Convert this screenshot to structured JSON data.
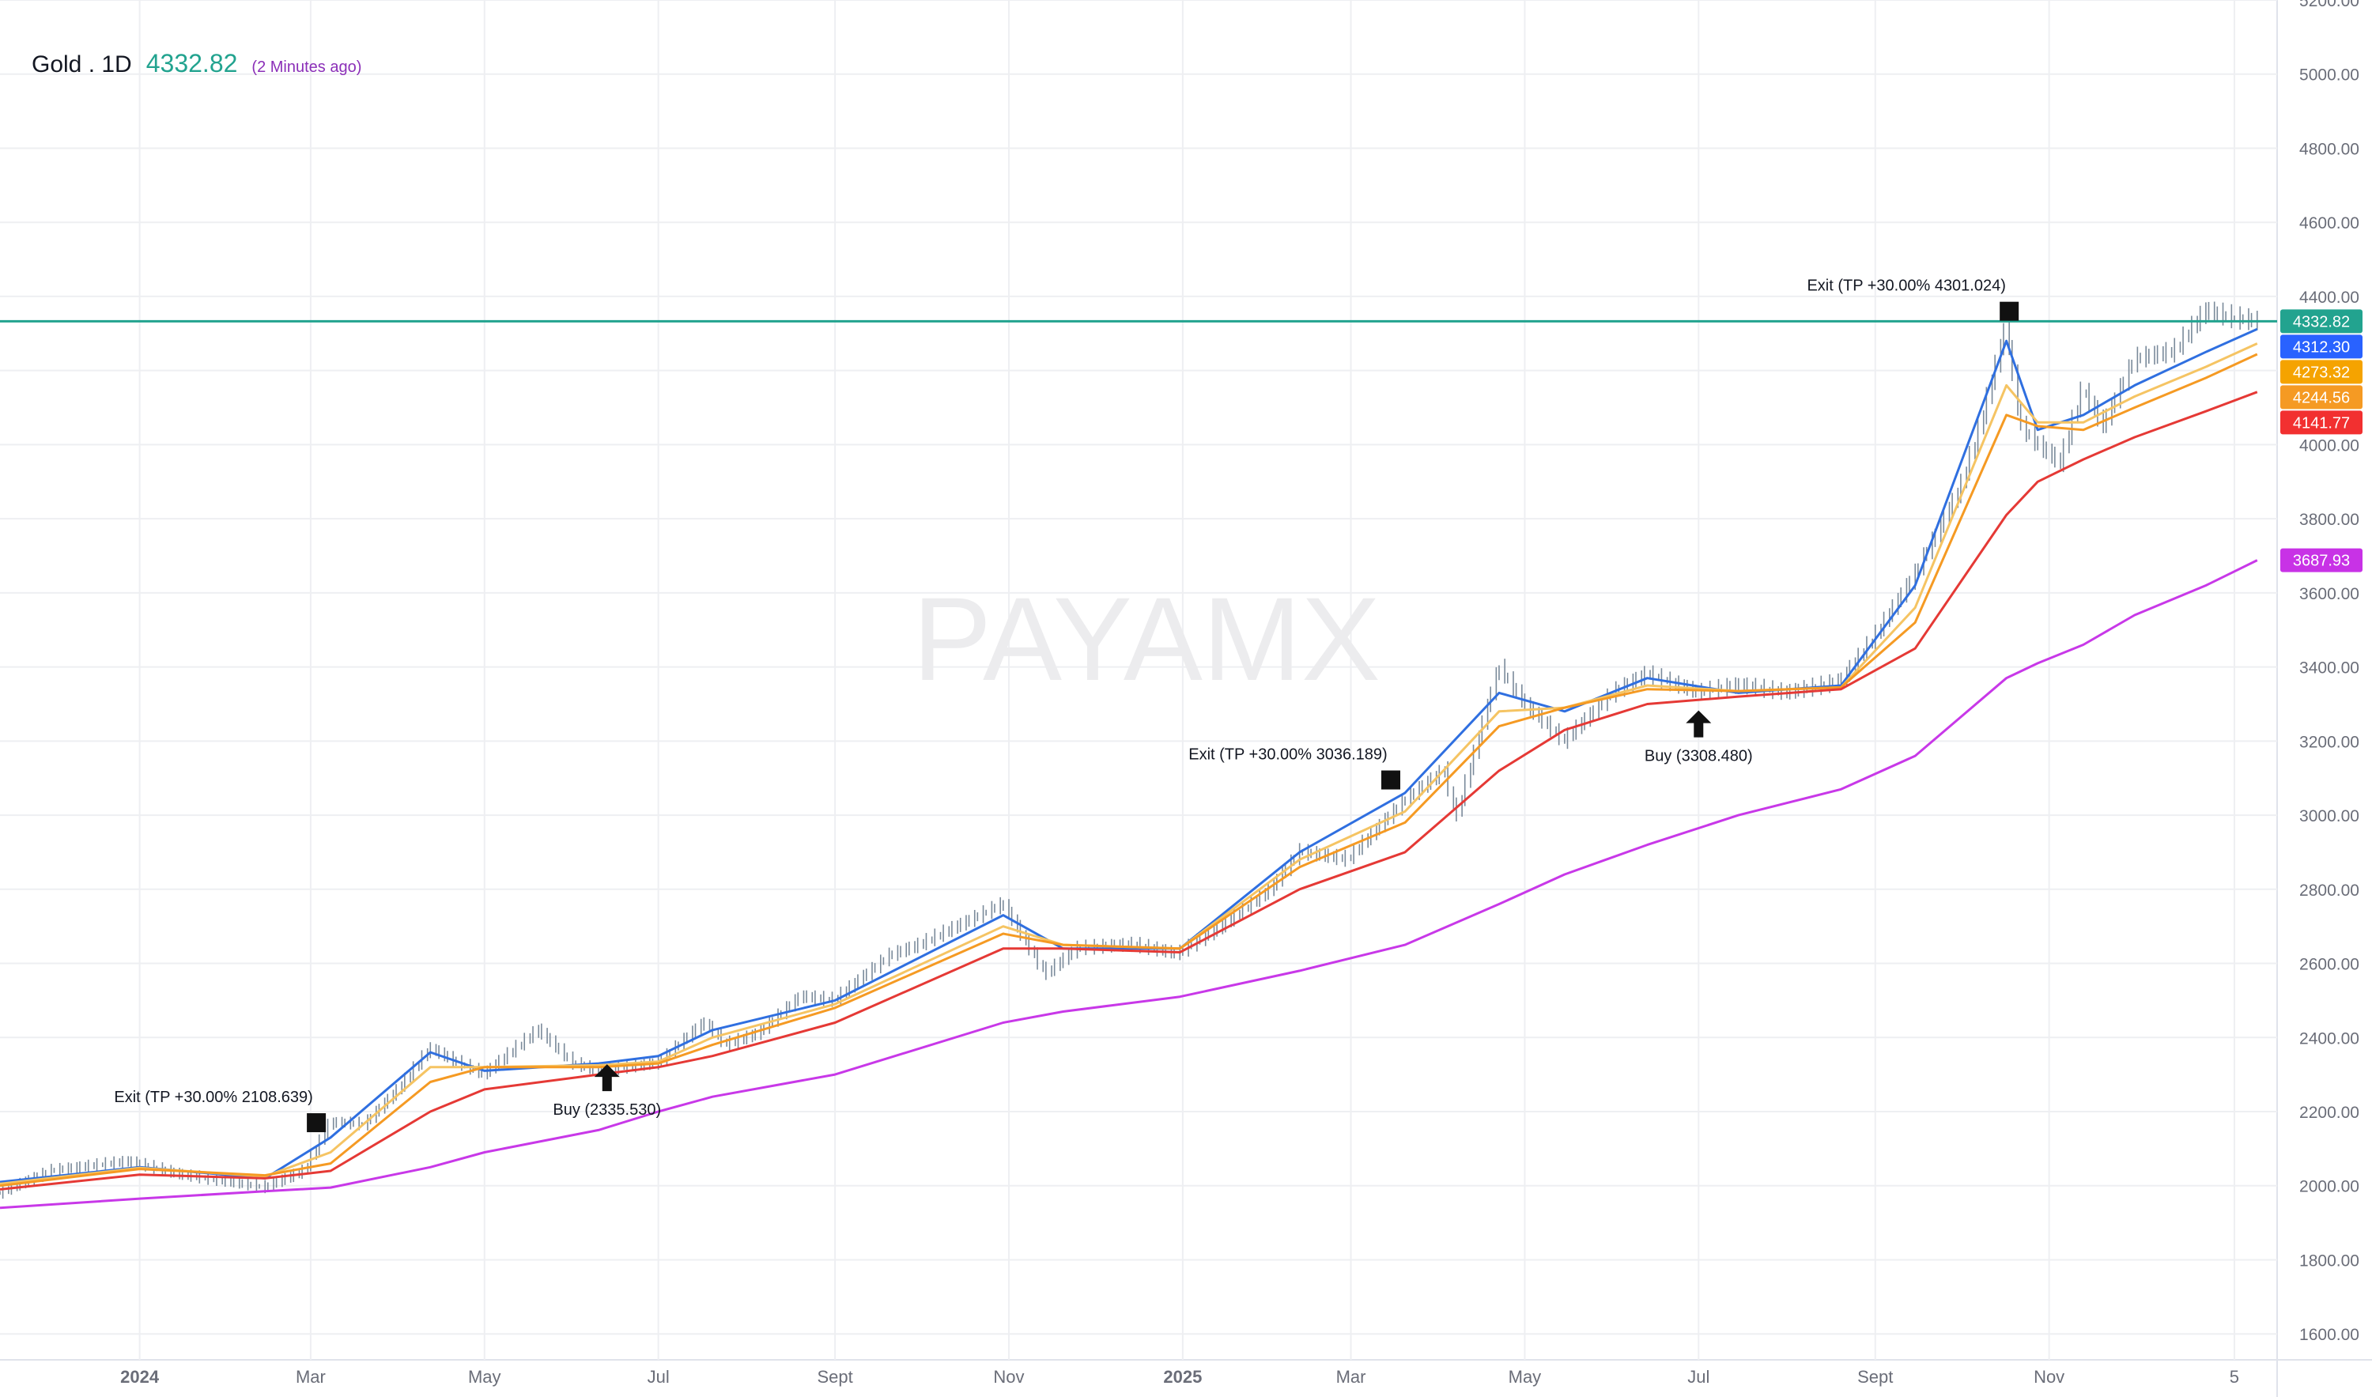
{
  "header": {
    "symbol": "Gold . 1D",
    "price": "4332.82",
    "age": "(2 Minutes ago)"
  },
  "watermark": "PAYAMX",
  "colors": {
    "candle": "#7a8a9a",
    "ema_fast": "#2f6fe0",
    "ema_mid": "#f5c463",
    "ema_slow": "#f59a23",
    "ema_long": "#e53935",
    "ma_200": "#c838e8",
    "last_price_line": "#22a38f",
    "grid": "#eeeff2",
    "axis_text": "#6a6d78"
  },
  "chart_data": {
    "type": "line",
    "title": "Gold . 1D",
    "xlabel": "",
    "ylabel": "",
    "ylim": [
      1530,
      5200
    ],
    "xlim": [
      "2023-11-13",
      "2026-01-20"
    ],
    "grid": true,
    "y_ticks": [
      "1600.00",
      "1800.00",
      "2000.00",
      "2200.00",
      "2400.00",
      "2600.00",
      "2800.00",
      "3000.00",
      "3200.00",
      "3400.00",
      "3600.00",
      "3800.00",
      "4000.00",
      "4200.00",
      "4400.00",
      "4600.00",
      "4800.00",
      "5000.00",
      "5200.00"
    ],
    "x_ticks": [
      {
        "label": "2024",
        "date": "2024-01-01"
      },
      {
        "label": "Mar",
        "date": "2024-03-01"
      },
      {
        "label": "May",
        "date": "2024-05-01"
      },
      {
        "label": "Jul",
        "date": "2024-07-01"
      },
      {
        "label": "Sept",
        "date": "2024-09-01"
      },
      {
        "label": "Nov",
        "date": "2024-11-01"
      },
      {
        "label": "2025",
        "date": "2025-01-01"
      },
      {
        "label": "Mar",
        "date": "2025-03-01"
      },
      {
        "label": "May",
        "date": "2025-05-01"
      },
      {
        "label": "Jul",
        "date": "2025-07-01"
      },
      {
        "label": "Sept",
        "date": "2025-09-01"
      },
      {
        "label": "Nov",
        "date": "2025-11-01"
      },
      {
        "label": "5",
        "date": "2026-01-05"
      }
    ],
    "series": [
      {
        "key": "price",
        "x": [
          "2023-11-13",
          "2023-12-01",
          "2023-12-28",
          "2024-01-15",
          "2024-02-14",
          "2024-02-28",
          "2024-03-08",
          "2024-03-20",
          "2024-04-01",
          "2024-04-12",
          "2024-04-22",
          "2024-05-01",
          "2024-05-20",
          "2024-06-01",
          "2024-06-10",
          "2024-06-20",
          "2024-07-01",
          "2024-07-17",
          "2024-07-25",
          "2024-08-05",
          "2024-08-20",
          "2024-09-01",
          "2024-09-20",
          "2024-10-01",
          "2024-10-30",
          "2024-11-14",
          "2024-11-25",
          "2024-12-15",
          "2024-12-30",
          "2025-01-15",
          "2025-02-01",
          "2025-02-11",
          "2025-02-28",
          "2025-03-20",
          "2025-04-03",
          "2025-04-07",
          "2025-04-22",
          "2025-05-01",
          "2025-05-15",
          "2025-06-01",
          "2025-06-13",
          "2025-07-01",
          "2025-07-15",
          "2025-08-01",
          "2025-08-20",
          "2025-09-01",
          "2025-09-15",
          "2025-10-01",
          "2025-10-08",
          "2025-10-17",
          "2025-10-22",
          "2025-10-28",
          "2025-11-05",
          "2025-11-13",
          "2025-11-20",
          "2025-12-01",
          "2025-12-15",
          "2025-12-26",
          "2026-01-05",
          "2026-01-13"
        ],
        "values": [
          1980,
          2040,
          2065,
          2030,
          1995,
          2040,
          2170,
          2165,
          2260,
          2370,
          2330,
          2300,
          2420,
          2330,
          2310,
          2320,
          2330,
          2440,
          2380,
          2410,
          2510,
          2500,
          2620,
          2650,
          2760,
          2570,
          2640,
          2650,
          2625,
          2700,
          2800,
          2900,
          2880,
          3040,
          3120,
          2990,
          3400,
          3300,
          3200,
          3330,
          3380,
          3330,
          3350,
          3330,
          3360,
          3480,
          3650,
          3880,
          4050,
          4320,
          4050,
          4000,
          3950,
          4150,
          4050,
          4230,
          4250,
          4360,
          4340,
          4332
        ]
      },
      {
        "key": "ema_fast",
        "name": "",
        "value_label": "4312.30",
        "x": [
          "2023-11-13",
          "2024-01-01",
          "2024-02-14",
          "2024-03-08",
          "2024-04-12",
          "2024-05-01",
          "2024-06-10",
          "2024-07-01",
          "2024-07-20",
          "2024-09-01",
          "2024-10-30",
          "2024-11-20",
          "2024-12-31",
          "2025-02-11",
          "2025-03-20",
          "2025-04-22",
          "2025-05-15",
          "2025-06-13",
          "2025-07-15",
          "2025-08-20",
          "2025-09-15",
          "2025-10-17",
          "2025-10-28",
          "2025-11-13",
          "2025-12-01",
          "2025-12-26",
          "2026-01-13"
        ],
        "values": [
          2010,
          2050,
          2020,
          2130,
          2360,
          2310,
          2330,
          2350,
          2420,
          2500,
          2730,
          2640,
          2640,
          2900,
          3060,
          3330,
          3280,
          3370,
          3330,
          3350,
          3620,
          4280,
          4040,
          4080,
          4160,
          4250,
          4312
        ]
      },
      {
        "key": "ema_mid",
        "name": "",
        "value_label": "4273.32",
        "x": [
          "2023-11-13",
          "2024-01-01",
          "2024-02-14",
          "2024-03-08",
          "2024-04-12",
          "2024-05-01",
          "2024-06-10",
          "2024-07-01",
          "2024-07-20",
          "2024-09-01",
          "2024-10-30",
          "2024-11-20",
          "2024-12-31",
          "2025-02-11",
          "2025-03-20",
          "2025-04-22",
          "2025-05-15",
          "2025-06-13",
          "2025-07-15",
          "2025-08-20",
          "2025-09-15",
          "2025-10-17",
          "2025-10-28",
          "2025-11-13",
          "2025-12-01",
          "2025-12-26",
          "2026-01-13"
        ],
        "values": [
          2005,
          2048,
          2025,
          2090,
          2320,
          2320,
          2325,
          2335,
          2400,
          2490,
          2700,
          2650,
          2640,
          2880,
          3010,
          3280,
          3290,
          3350,
          3335,
          3345,
          3560,
          4160,
          4060,
          4060,
          4130,
          4210,
          4273
        ]
      },
      {
        "key": "ema_slow",
        "name": "",
        "value_label": "4244.56",
        "x": [
          "2023-11-13",
          "2024-01-01",
          "2024-02-14",
          "2024-03-08",
          "2024-04-12",
          "2024-05-01",
          "2024-06-10",
          "2024-07-01",
          "2024-07-20",
          "2024-09-01",
          "2024-10-30",
          "2024-11-20",
          "2024-12-31",
          "2025-02-11",
          "2025-03-20",
          "2025-04-22",
          "2025-05-15",
          "2025-06-13",
          "2025-07-15",
          "2025-08-20",
          "2025-09-15",
          "2025-10-17",
          "2025-10-28",
          "2025-11-13",
          "2025-12-01",
          "2025-12-26",
          "2026-01-13"
        ],
        "values": [
          2000,
          2045,
          2028,
          2060,
          2280,
          2320,
          2320,
          2330,
          2380,
          2480,
          2680,
          2650,
          2640,
          2860,
          2980,
          3240,
          3290,
          3340,
          3335,
          3345,
          3520,
          4080,
          4050,
          4040,
          4100,
          4180,
          4244
        ]
      },
      {
        "key": "ema_long",
        "name": "",
        "value_label": "4141.77",
        "x": [
          "2023-11-13",
          "2024-01-01",
          "2024-02-14",
          "2024-03-08",
          "2024-04-12",
          "2024-05-01",
          "2024-06-10",
          "2024-07-01",
          "2024-07-20",
          "2024-09-01",
          "2024-10-30",
          "2024-11-20",
          "2024-12-31",
          "2025-02-11",
          "2025-03-20",
          "2025-04-22",
          "2025-05-15",
          "2025-06-13",
          "2025-07-15",
          "2025-08-20",
          "2025-09-15",
          "2025-10-17",
          "2025-10-28",
          "2025-11-13",
          "2025-12-01",
          "2025-12-26",
          "2026-01-13"
        ],
        "values": [
          1990,
          2030,
          2020,
          2040,
          2200,
          2260,
          2300,
          2320,
          2350,
          2440,
          2640,
          2640,
          2630,
          2800,
          2900,
          3120,
          3230,
          3300,
          3320,
          3340,
          3450,
          3810,
          3900,
          3960,
          4020,
          4090,
          4142
        ]
      },
      {
        "key": "ma_200",
        "name": "",
        "value_label": "3687.93",
        "x": [
          "2023-11-13",
          "2024-01-01",
          "2024-02-14",
          "2024-03-08",
          "2024-04-12",
          "2024-05-01",
          "2024-06-10",
          "2024-07-01",
          "2024-07-20",
          "2024-09-01",
          "2024-10-30",
          "2024-11-20",
          "2024-12-31",
          "2025-02-11",
          "2025-03-20",
          "2025-04-22",
          "2025-05-15",
          "2025-06-13",
          "2025-07-15",
          "2025-08-20",
          "2025-09-15",
          "2025-10-17",
          "2025-10-28",
          "2025-11-13",
          "2025-12-01",
          "2025-12-26",
          "2026-01-13"
        ],
        "values": [
          1940,
          1965,
          1985,
          1995,
          2050,
          2090,
          2150,
          2200,
          2240,
          2300,
          2440,
          2470,
          2510,
          2580,
          2650,
          2760,
          2840,
          2920,
          3000,
          3070,
          3160,
          3370,
          3410,
          3460,
          3540,
          3620,
          3688
        ]
      }
    ],
    "last_price": {
      "value": "4332.82",
      "level": 4332.82
    },
    "annotations": [
      {
        "type": "exit",
        "date": "2024-03-03",
        "price": 2170,
        "label": "Exit (TP +30.00% 2108.639)"
      },
      {
        "type": "buy",
        "date": "2024-06-13",
        "price": 2285,
        "label": "Buy (2335.530)"
      },
      {
        "type": "exit",
        "date": "2025-03-15",
        "price": 3095,
        "label": "Exit (TP +30.00% 3036.189)"
      },
      {
        "type": "buy",
        "date": "2025-07-01",
        "price": 3240,
        "label": "Buy (3308.480)"
      },
      {
        "type": "exit",
        "date": "2025-10-18",
        "price": 4360,
        "label": "Exit (TP +30.00% 4301.024)"
      }
    ]
  }
}
